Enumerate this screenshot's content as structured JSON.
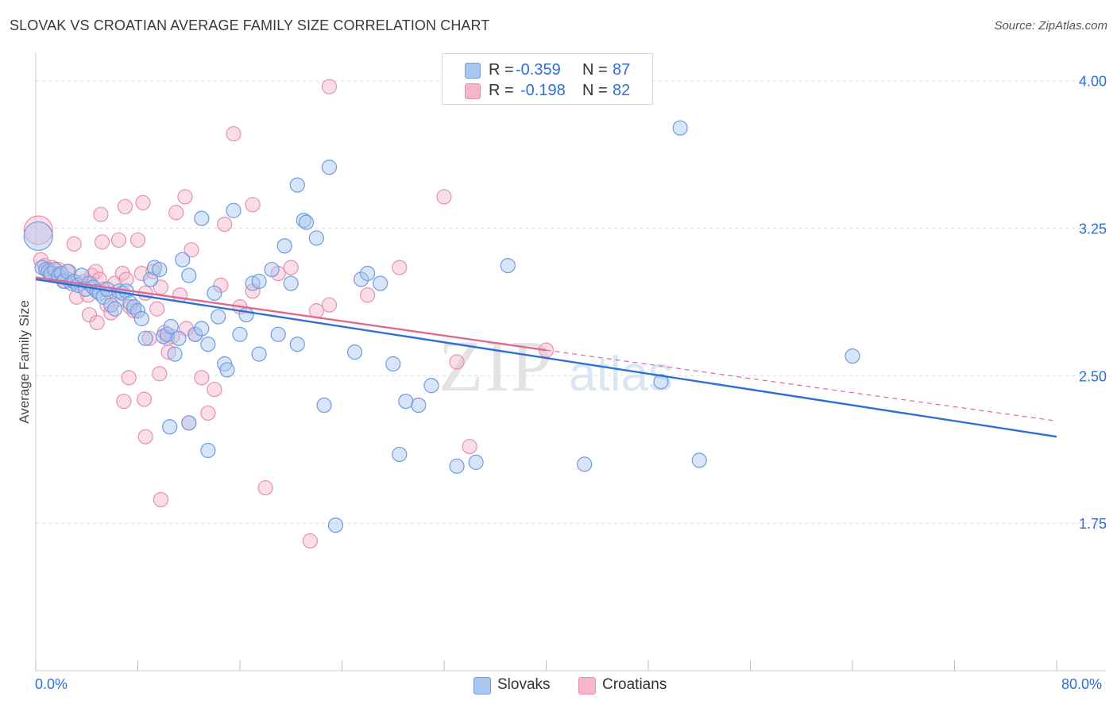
{
  "header": {
    "title": "SLOVAK VS CROATIAN AVERAGE FAMILY SIZE CORRELATION CHART",
    "source": "Source: ZipAtlas.com"
  },
  "legend_top": {
    "rows": [
      {
        "r_label": "R =",
        "r_value": "-0.359",
        "n_label": "N =",
        "n_value": "87"
      },
      {
        "r_label": "R =",
        "r_value": "-0.198",
        "n_label": "N =",
        "n_value": "82"
      }
    ]
  },
  "legend_bottom": {
    "slovaks": "Slovaks",
    "croatians": "Croatians"
  },
  "watermark": {
    "zip": "ZIP",
    "atlas": "atlas"
  },
  "colors": {
    "slovaks_fill": "#a9c6f0",
    "slovaks_stroke": "#6f9be0",
    "slovaks_line": "#2c6fd6",
    "croatians_fill": "#f5b6c9",
    "croatians_stroke": "#ea8fab",
    "croatians_line": "#e0688f",
    "axis_text": "#2c6fd6",
    "grid": "#dcdcdc"
  },
  "chart_data": {
    "type": "scatter",
    "title": "SLOVAK VS CROATIAN AVERAGE FAMILY SIZE CORRELATION CHART",
    "xlabel": "",
    "ylabel": "Average Family Size",
    "xlim": [
      0,
      80
    ],
    "ylim": [
      1.0,
      4.12
    ],
    "x_tick_labels": [
      "0.0%",
      "80.0%"
    ],
    "y_ticks": [
      1.75,
      2.5,
      3.25,
      4.0
    ],
    "y_tick_labels": [
      "1.75",
      "2.50",
      "3.25",
      "4.00"
    ],
    "grid": true,
    "legend_position": "top-center",
    "series": [
      {
        "name": "Slovaks",
        "R": -0.359,
        "N": 87,
        "trend": {
          "x0": 0,
          "y0": 2.99,
          "x1": 80,
          "y1": 2.19
        },
        "points": [
          [
            0.2,
            3.21
          ],
          [
            0.5,
            3.05
          ],
          [
            0.8,
            3.04
          ],
          [
            1.0,
            3.03
          ],
          [
            1.2,
            3.02
          ],
          [
            1.5,
            3.04
          ],
          [
            1.8,
            3.01
          ],
          [
            2.0,
            3.02
          ],
          [
            2.2,
            2.98
          ],
          [
            2.5,
            3.03
          ],
          [
            2.8,
            2.97
          ],
          [
            3.0,
            2.98
          ],
          [
            3.3,
            2.96
          ],
          [
            3.6,
            3.01
          ],
          [
            3.9,
            2.94
          ],
          [
            4.2,
            2.97
          ],
          [
            4.5,
            2.95
          ],
          [
            4.8,
            2.93
          ],
          [
            5.0,
            2.92
          ],
          [
            5.3,
            2.9
          ],
          [
            5.6,
            2.94
          ],
          [
            5.9,
            2.86
          ],
          [
            6.2,
            2.84
          ],
          [
            6.5,
            2.93
          ],
          [
            6.8,
            2.92
          ],
          [
            7.1,
            2.93
          ],
          [
            7.4,
            2.87
          ],
          [
            7.7,
            2.85
          ],
          [
            8.0,
            2.83
          ],
          [
            8.3,
            2.79
          ],
          [
            8.6,
            2.69
          ],
          [
            9.0,
            2.99
          ],
          [
            9.3,
            3.05
          ],
          [
            9.7,
            3.04
          ],
          [
            10.0,
            2.7
          ],
          [
            10.3,
            2.71
          ],
          [
            10.6,
            2.75
          ],
          [
            10.9,
            2.61
          ],
          [
            11.2,
            2.69
          ],
          [
            11.5,
            3.09
          ],
          [
            12.0,
            3.01
          ],
          [
            12.5,
            2.71
          ],
          [
            13.0,
            2.74
          ],
          [
            13.5,
            2.66
          ],
          [
            14.0,
            2.92
          ],
          [
            14.3,
            2.8
          ],
          [
            14.8,
            2.56
          ],
          [
            15.0,
            2.53
          ],
          [
            15.5,
            3.34
          ],
          [
            16.0,
            2.71
          ],
          [
            16.5,
            2.81
          ],
          [
            17.0,
            2.97
          ],
          [
            17.5,
            2.61
          ],
          [
            18.5,
            3.04
          ],
          [
            19.0,
            2.71
          ],
          [
            19.5,
            3.16
          ],
          [
            20.0,
            2.97
          ],
          [
            20.5,
            2.66
          ],
          [
            21.0,
            3.29
          ],
          [
            21.2,
            3.28
          ],
          [
            22.0,
            3.2
          ],
          [
            22.6,
            2.35
          ],
          [
            23.0,
            3.56
          ],
          [
            25.0,
            2.62
          ],
          [
            25.5,
            2.99
          ],
          [
            26.0,
            3.02
          ],
          [
            27.0,
            2.97
          ],
          [
            28.0,
            2.56
          ],
          [
            28.5,
            2.1
          ],
          [
            29.0,
            2.37
          ],
          [
            30.0,
            2.35
          ],
          [
            31.0,
            2.45
          ],
          [
            33.0,
            2.04
          ],
          [
            34.5,
            2.06
          ],
          [
            37.0,
            3.06
          ],
          [
            43.0,
            2.05
          ],
          [
            49.0,
            2.47
          ],
          [
            50.5,
            3.76
          ],
          [
            52.0,
            2.07
          ],
          [
            64.0,
            2.6
          ],
          [
            13.5,
            2.12
          ],
          [
            10.5,
            2.24
          ],
          [
            12.0,
            2.26
          ],
          [
            17.5,
            2.98
          ],
          [
            13.0,
            3.3
          ],
          [
            23.5,
            1.74
          ],
          [
            20.5,
            3.47
          ]
        ]
      },
      {
        "name": "Croatians",
        "R": -0.198,
        "N": 82,
        "trend": {
          "x0": 0,
          "y0": 3.0,
          "x1": 40,
          "y1": 2.63,
          "dash_x1": 80,
          "dash_y1": 2.27
        },
        "points": [
          [
            0.2,
            3.24
          ],
          [
            0.4,
            3.09
          ],
          [
            0.7,
            3.06
          ],
          [
            1.0,
            3.04
          ],
          [
            1.3,
            3.05
          ],
          [
            1.5,
            3.02
          ],
          [
            1.8,
            3.04
          ],
          [
            2.0,
            3.02
          ],
          [
            2.3,
            2.98
          ],
          [
            2.6,
            3.03
          ],
          [
            2.9,
            2.98
          ],
          [
            3.2,
            2.9
          ],
          [
            3.5,
            2.97
          ],
          [
            3.8,
            2.98
          ],
          [
            4.1,
            2.91
          ],
          [
            4.4,
            3.01
          ],
          [
            4.7,
            3.03
          ],
          [
            5.0,
            2.99
          ],
          [
            5.3,
            2.94
          ],
          [
            5.6,
            2.86
          ],
          [
            5.9,
            2.82
          ],
          [
            6.2,
            2.97
          ],
          [
            6.5,
            2.89
          ],
          [
            6.8,
            3.02
          ],
          [
            7.1,
            2.99
          ],
          [
            7.4,
            2.85
          ],
          [
            7.7,
            2.83
          ],
          [
            8.0,
            3.19
          ],
          [
            8.3,
            3.02
          ],
          [
            8.6,
            2.92
          ],
          [
            8.9,
            2.69
          ],
          [
            9.2,
            3.03
          ],
          [
            9.5,
            2.84
          ],
          [
            9.8,
            2.95
          ],
          [
            10.1,
            2.72
          ],
          [
            10.4,
            2.62
          ],
          [
            10.7,
            2.7
          ],
          [
            11.0,
            3.33
          ],
          [
            11.3,
            2.91
          ],
          [
            11.7,
            3.41
          ],
          [
            12.0,
            2.26
          ],
          [
            12.5,
            2.71
          ],
          [
            13.0,
            2.49
          ],
          [
            13.5,
            2.31
          ],
          [
            14.0,
            2.43
          ],
          [
            14.8,
            3.27
          ],
          [
            15.5,
            3.73
          ],
          [
            16.0,
            2.85
          ],
          [
            17.0,
            2.93
          ],
          [
            18.0,
            1.93
          ],
          [
            19.0,
            3.02
          ],
          [
            20.0,
            3.05
          ],
          [
            21.5,
            1.66
          ],
          [
            22.0,
            2.83
          ],
          [
            23.0,
            3.97
          ],
          [
            26.0,
            2.91
          ],
          [
            28.5,
            3.05
          ],
          [
            32.0,
            3.41
          ],
          [
            33.0,
            2.57
          ],
          [
            34.0,
            2.14
          ],
          [
            40.0,
            2.63
          ],
          [
            7.0,
            3.36
          ],
          [
            6.5,
            3.19
          ],
          [
            5.1,
            3.32
          ],
          [
            2.5,
            2.99
          ],
          [
            3.0,
            3.17
          ],
          [
            4.2,
            2.81
          ],
          [
            4.8,
            2.77
          ],
          [
            7.3,
            2.49
          ],
          [
            6.9,
            2.37
          ],
          [
            8.5,
            2.38
          ],
          [
            8.6,
            2.19
          ],
          [
            8.4,
            3.38
          ],
          [
            10.3,
            2.69
          ],
          [
            9.7,
            2.51
          ],
          [
            12.2,
            3.14
          ],
          [
            11.8,
            2.74
          ],
          [
            9.8,
            1.87
          ],
          [
            23.0,
            2.86
          ],
          [
            17.0,
            3.37
          ],
          [
            14.5,
            2.96
          ],
          [
            5.2,
            3.18
          ]
        ]
      }
    ]
  }
}
